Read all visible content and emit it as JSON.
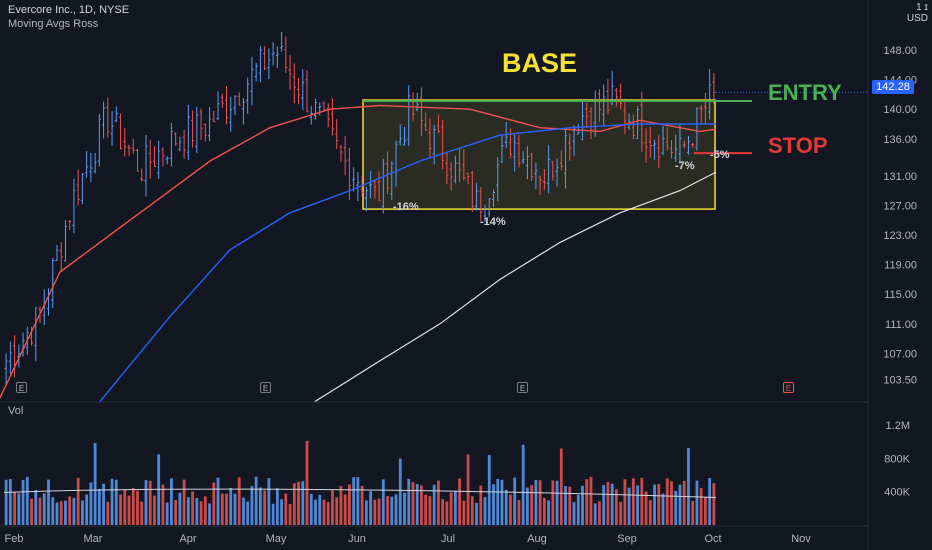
{
  "header": {
    "title": "Evercore Inc., 1D, NYSE",
    "indicator": "Moving Avgs Ross",
    "currency_scale": "1 ɪ",
    "currency": "USD"
  },
  "volume_label": "Vol",
  "last_price": "142.28",
  "annotations": {
    "base": "BASE",
    "entry": "ENTRY",
    "stop": "STOP",
    "pct1": "-16%",
    "pct2": "-14%",
    "pct3": "-7%",
    "pct4": "-5%"
  },
  "earnings_marker": "E",
  "colors": {
    "background": "#131722",
    "up_candle": "#5b9cf6",
    "down_candle": "#ef5350",
    "ma_red": "#ef5350",
    "ma_blue": "#2962ff",
    "ma_white": "#e0e3eb",
    "base_box": "#f5e132",
    "entry_line": "#4caf50",
    "stop_line": "#e53935",
    "last_price_tag": "#2962ff"
  },
  "chart_data": {
    "type": "candlestick",
    "title": "Evercore Inc., 1D, NYSE",
    "x_tick_labels": [
      "Feb",
      "Mar",
      "Apr",
      "May",
      "Jun",
      "Jul",
      "Aug",
      "Sep",
      "Oct",
      "Nov"
    ],
    "y_tick_labels": [
      "148.00",
      "144.00",
      "140.00",
      "136.00",
      "131.00",
      "127.00",
      "123.00",
      "119.00",
      "115.00",
      "111.00",
      "107.00",
      "103.50"
    ],
    "volume_tick_labels": [
      "1.2M",
      "800K",
      "400K"
    ],
    "ylim": [
      100.5,
      152
    ],
    "volume_ylim": [
      0,
      1450000
    ],
    "price_path": [
      {
        "date": "Feb",
        "close": 106
      },
      {
        "date": "Feb mid",
        "close": 112
      },
      {
        "date": "Mar",
        "close": 128
      },
      {
        "date": "Mar mid",
        "close": 139
      },
      {
        "date": "Mar end",
        "close": 132
      },
      {
        "date": "Apr",
        "close": 136
      },
      {
        "date": "Apr mid",
        "close": 138
      },
      {
        "date": "May",
        "close": 143
      },
      {
        "date": "May mid",
        "close": 148
      },
      {
        "date": "Jun",
        "close": 141
      },
      {
        "date": "Jun mid",
        "close": 133
      },
      {
        "date": "Jun end",
        "close": 128
      },
      {
        "date": "Jul",
        "close": 140
      },
      {
        "date": "Jul mid",
        "close": 134
      },
      {
        "date": "Jul end",
        "close": 127
      },
      {
        "date": "Aug",
        "close": 136
      },
      {
        "date": "Aug mid",
        "close": 131
      },
      {
        "date": "Aug end",
        "close": 139
      },
      {
        "date": "Sep",
        "close": 141
      },
      {
        "date": "Sep mid",
        "close": 137
      },
      {
        "date": "Sep end",
        "close": 134
      },
      {
        "date": "Oct",
        "close": 142.28
      }
    ],
    "moving_averages": [
      {
        "color": "red",
        "values": [
          [
            0,
            101
          ],
          [
            60,
            118
          ],
          [
            150,
            127
          ],
          [
            210,
            133
          ],
          [
            270,
            137.5
          ],
          [
            330,
            140
          ],
          [
            380,
            140.5
          ],
          [
            470,
            140
          ],
          [
            540,
            137.5
          ],
          [
            600,
            137
          ],
          [
            640,
            138.5
          ],
          [
            700,
            137
          ],
          [
            716,
            137.3
          ]
        ]
      },
      {
        "color": "blue",
        "values": [
          [
            100,
            100.5
          ],
          [
            170,
            112
          ],
          [
            230,
            121
          ],
          [
            290,
            126
          ],
          [
            350,
            129
          ],
          [
            420,
            133
          ],
          [
            500,
            136.5
          ],
          [
            570,
            137.5
          ],
          [
            640,
            138
          ],
          [
            716,
            138
          ]
        ]
      },
      {
        "color": "white",
        "values": [
          [
            315,
            100.5
          ],
          [
            380,
            106
          ],
          [
            440,
            111
          ],
          [
            500,
            117
          ],
          [
            560,
            122
          ],
          [
            620,
            126
          ],
          [
            680,
            129
          ],
          [
            716,
            131.5
          ]
        ]
      }
    ],
    "base_range": {
      "low": 126.5,
      "high": 140.7
    },
    "entry_level": 140.7,
    "stop_level": 134.2
  }
}
